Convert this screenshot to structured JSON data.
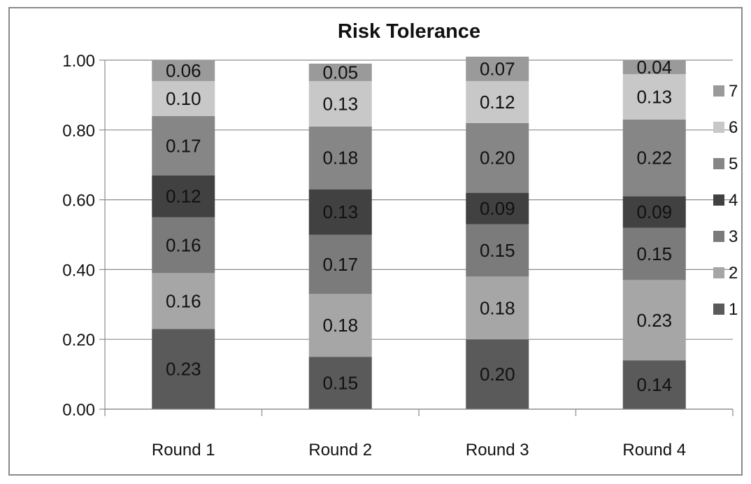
{
  "chart_data": {
    "type": "bar",
    "stacked": true,
    "title": "Risk Tolerance",
    "xlabel": "",
    "ylabel": "",
    "categories": [
      "Round 1",
      "Round 2",
      "Round 3",
      "Round 4"
    ],
    "y_tick_labels": [
      "0.00",
      "0.20",
      "0.40",
      "0.60",
      "0.80",
      "1.00"
    ],
    "ylim": [
      0,
      1
    ],
    "grid": "horizontal",
    "legend_position": "right",
    "series": [
      {
        "name": "1",
        "color": "#5a5a5a",
        "values": [
          0.23,
          0.15,
          0.2,
          0.14
        ]
      },
      {
        "name": "2",
        "color": "#a6a6a6",
        "values": [
          0.16,
          0.18,
          0.18,
          0.23
        ]
      },
      {
        "name": "3",
        "color": "#7b7b7b",
        "values": [
          0.16,
          0.17,
          0.15,
          0.15
        ]
      },
      {
        "name": "4",
        "color": "#414141",
        "values": [
          0.12,
          0.13,
          0.09,
          0.09
        ]
      },
      {
        "name": "5",
        "color": "#868686",
        "values": [
          0.17,
          0.18,
          0.2,
          0.22
        ]
      },
      {
        "name": "6",
        "color": "#c8c8c8",
        "values": [
          0.1,
          0.13,
          0.12,
          0.13
        ]
      },
      {
        "name": "7",
        "color": "#9a9a9a",
        "values": [
          0.06,
          0.05,
          0.07,
          0.04
        ]
      }
    ]
  }
}
